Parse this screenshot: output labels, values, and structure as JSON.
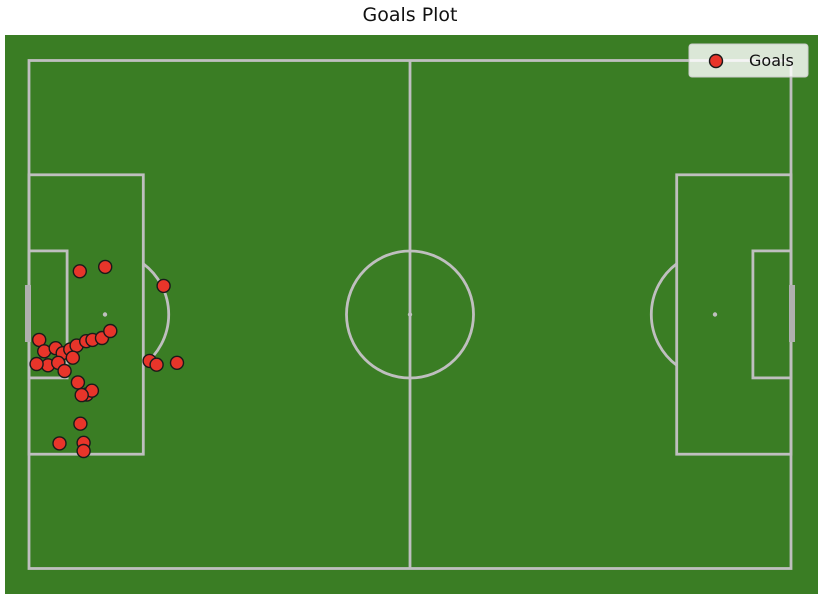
{
  "chart_data": {
    "type": "scatter",
    "title": "Goals Plot",
    "xlabel": "",
    "ylabel": "",
    "xlim": [
      0,
      120
    ],
    "ylim": [
      0,
      80
    ],
    "grid": false,
    "legend": {
      "position": "top-right",
      "entries": [
        "Goals"
      ]
    },
    "colors": {
      "pitch": "#3a7d24",
      "lines": "#bfbfbf",
      "marker": "#e8352a"
    },
    "series": [
      {
        "name": "Goals",
        "points": [
          [
            12.0,
            47.5
          ],
          [
            8.0,
            46.8
          ],
          [
            21.2,
            44.5
          ],
          [
            1.6,
            36.0
          ],
          [
            2.4,
            34.2
          ],
          [
            4.2,
            34.7
          ],
          [
            5.3,
            33.9
          ],
          [
            6.5,
            34.5
          ],
          [
            7.5,
            35.1
          ],
          [
            9.0,
            35.8
          ],
          [
            10.0,
            36.0
          ],
          [
            11.5,
            36.3
          ],
          [
            12.8,
            37.4
          ],
          [
            3.0,
            32.0
          ],
          [
            4.6,
            32.4
          ],
          [
            5.6,
            31.1
          ],
          [
            6.9,
            33.2
          ],
          [
            1.2,
            32.2
          ],
          [
            7.7,
            29.3
          ],
          [
            9.1,
            27.4
          ],
          [
            9.9,
            28.0
          ],
          [
            8.3,
            27.3
          ],
          [
            19.0,
            32.7
          ],
          [
            20.1,
            32.1
          ],
          [
            23.3,
            32.4
          ],
          [
            8.1,
            22.8
          ],
          [
            4.8,
            19.7
          ],
          [
            8.6,
            19.8
          ],
          [
            8.6,
            18.5
          ]
        ]
      }
    ]
  }
}
